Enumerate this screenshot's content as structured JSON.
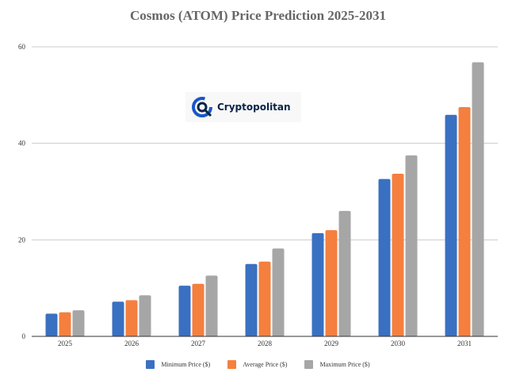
{
  "chart_data": {
    "type": "bar",
    "title": "Cosmos (ATOM) Price Prediction 2025-2031",
    "categories": [
      "2025",
      "2026",
      "2027",
      "2028",
      "2029",
      "2030",
      "2031"
    ],
    "series": [
      {
        "name": "Minimum Price ($)",
        "color": "#3a70c1",
        "values": [
          4.7,
          7.2,
          10.5,
          15.0,
          21.4,
          32.6,
          45.9
        ]
      },
      {
        "name": "Average Price ($)",
        "color": "#f57f3e",
        "values": [
          5.0,
          7.5,
          10.9,
          15.5,
          22.0,
          33.7,
          47.5
        ]
      },
      {
        "name": "Maximum Price ($)",
        "color": "#a6a6a6",
        "values": [
          5.4,
          8.5,
          12.6,
          18.2,
          26.0,
          37.5,
          56.8
        ]
      }
    ],
    "ylim": [
      0,
      60
    ],
    "yticks": [
      "0",
      "20",
      "40",
      "60"
    ],
    "xlabel": "",
    "ylabel": "",
    "grid": true,
    "legend": "bottom"
  },
  "watermark": {
    "text": "Cryptopolitan"
  }
}
